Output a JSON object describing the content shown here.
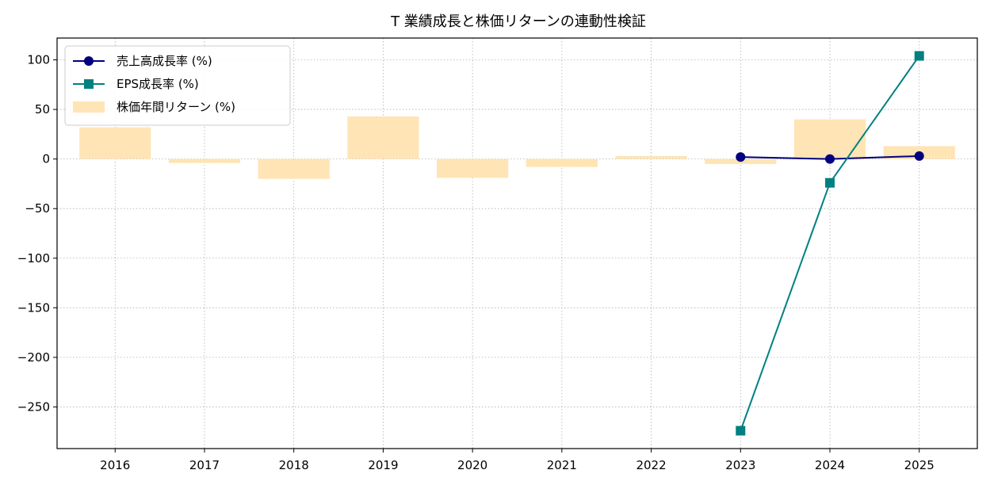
{
  "chart_data": {
    "type": "bar+line",
    "title": "T 業績成長と株価リターンの連動性検証",
    "xlabel": "",
    "ylabel": "",
    "categories": [
      "2016",
      "2017",
      "2018",
      "2019",
      "2020",
      "2021",
      "2022",
      "2023",
      "2024",
      "2025"
    ],
    "ylim": [
      -292,
      122
    ],
    "yticks": [
      100,
      50,
      0,
      -50,
      -100,
      -150,
      -200,
      -250
    ],
    "ytick_labels": [
      "100",
      "50",
      "0",
      "−50",
      "−100",
      "−150",
      "−200",
      "−250"
    ],
    "grid": true,
    "legend_position": "top-left",
    "series": [
      {
        "name": "売上高成長率 (%)",
        "kind": "line",
        "marker": "circle",
        "color": "#000080",
        "values": [
          null,
          null,
          null,
          null,
          null,
          null,
          null,
          2,
          0,
          3
        ]
      },
      {
        "name": "EPS成長率 (%)",
        "kind": "line",
        "marker": "square",
        "color": "#008080",
        "values": [
          null,
          null,
          null,
          null,
          null,
          null,
          null,
          -274,
          -24,
          104
        ]
      },
      {
        "name": "株価年間リターン (%)",
        "kind": "bar",
        "color": "#FFE4B5",
        "values": [
          32,
          -4,
          -20,
          43,
          -19,
          -8,
          3,
          -5,
          40,
          13
        ]
      }
    ]
  }
}
